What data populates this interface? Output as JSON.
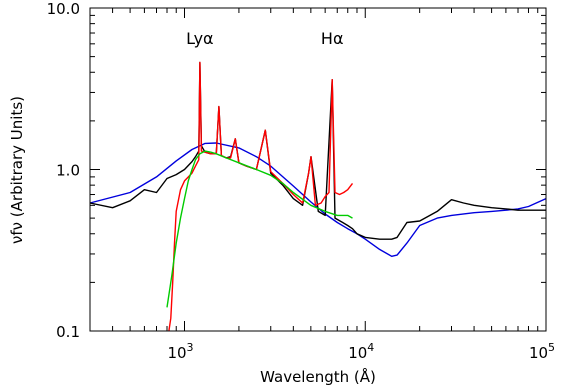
{
  "chart_data": {
    "type": "line",
    "xlabel": "Wavelength (Å)",
    "ylabel": "νfν (Arbitrary Units)",
    "xscale": "log",
    "yscale": "log",
    "xlim": [
      300,
      100000
    ],
    "ylim": [
      0.1,
      10.0
    ],
    "x_ticks": [
      {
        "value": 1000,
        "base": "10",
        "exp": "3"
      },
      {
        "value": 10000,
        "base": "10",
        "exp": "4"
      },
      {
        "value": 100000,
        "base": "10",
        "exp": "5"
      }
    ],
    "y_ticks": [
      {
        "value": 0.1,
        "label": "0.1"
      },
      {
        "value": 1.0,
        "label": "1.0"
      },
      {
        "value": 10.0,
        "label": "10.0"
      }
    ],
    "annotations": [
      {
        "text": "Lyα",
        "x": 1216,
        "y": 6.5
      },
      {
        "text": "Hα",
        "x": 6563,
        "y": 6.5
      }
    ],
    "series": [
      {
        "color": "#0000dd",
        "x": [
          300,
          500,
          700,
          900,
          1100,
          1300,
          1500,
          2000,
          2500,
          3000,
          4000,
          5000,
          6000,
          7000,
          8000,
          9000,
          10000,
          12000,
          14000,
          15000,
          17000,
          20000,
          25000,
          30000,
          40000,
          50000,
          60000,
          70000,
          80000,
          100000
        ],
        "y": [
          0.62,
          0.72,
          0.9,
          1.13,
          1.33,
          1.45,
          1.46,
          1.36,
          1.2,
          1.05,
          0.79,
          0.63,
          0.53,
          0.47,
          0.43,
          0.4,
          0.37,
          0.32,
          0.29,
          0.295,
          0.35,
          0.45,
          0.5,
          0.52,
          0.54,
          0.55,
          0.56,
          0.57,
          0.59,
          0.66
        ]
      },
      {
        "color": "#000000",
        "x": [
          300,
          400,
          500,
          600,
          700,
          800,
          900,
          1000,
          1100,
          1150,
          1200,
          1216,
          1240,
          1300,
          1400,
          1500,
          1549,
          1600,
          1700,
          1800,
          1909,
          2000,
          2200,
          2500,
          2798,
          3000,
          3500,
          4000,
          4500,
          4861,
          5007,
          5500,
          6000,
          6563,
          6800,
          7500,
          8000,
          8500,
          9000,
          10000,
          12000,
          14000,
          15000,
          17000,
          20000,
          25000,
          30000,
          35000,
          40000,
          50000,
          60000,
          70000,
          80000,
          100000
        ],
        "y": [
          0.62,
          0.58,
          0.64,
          0.75,
          0.72,
          0.88,
          0.93,
          1.0,
          1.12,
          1.2,
          1.3,
          4.6,
          1.4,
          1.28,
          1.25,
          1.26,
          2.45,
          1.22,
          1.18,
          1.2,
          1.55,
          1.1,
          1.05,
          1.0,
          1.75,
          0.95,
          0.8,
          0.66,
          0.6,
          0.95,
          1.2,
          0.55,
          0.52,
          3.6,
          0.5,
          0.47,
          0.45,
          0.43,
          0.4,
          0.38,
          0.37,
          0.37,
          0.38,
          0.47,
          0.48,
          0.55,
          0.65,
          0.62,
          0.6,
          0.58,
          0.57,
          0.56,
          0.56,
          0.56
        ]
      },
      {
        "color": "#ff0000",
        "x": [
          820,
          840,
          860,
          880,
          900,
          950,
          1000,
          1100,
          1150,
          1200,
          1216,
          1240,
          1300,
          1400,
          1500,
          1549,
          1600,
          1700,
          1800,
          1909,
          2000,
          2200,
          2500,
          2798,
          3000,
          3500,
          4000,
          4500,
          4861,
          5007,
          5300,
          5700,
          6000,
          6300,
          6563,
          6800,
          7200,
          7600,
          8000,
          8500
        ],
        "y": [
          0.08,
          0.12,
          0.2,
          0.35,
          0.55,
          0.75,
          0.85,
          0.95,
          1.05,
          1.15,
          4.6,
          1.3,
          1.28,
          1.25,
          1.25,
          2.45,
          1.22,
          1.18,
          1.18,
          1.55,
          1.1,
          1.05,
          1.0,
          1.75,
          0.97,
          0.82,
          0.7,
          0.62,
          0.95,
          1.2,
          0.6,
          0.62,
          0.68,
          0.72,
          3.6,
          0.72,
          0.7,
          0.72,
          0.75,
          0.82
        ]
      },
      {
        "color": "#00cc00",
        "x": [
          800,
          850,
          900,
          950,
          1000,
          1050,
          1100,
          1150,
          1216,
          1300,
          1400,
          1500,
          1700,
          2000,
          2500,
          3000,
          3500,
          4000,
          5000,
          6000,
          7000,
          8000,
          8500
        ],
        "y": [
          0.14,
          0.22,
          0.35,
          0.5,
          0.66,
          0.85,
          1.0,
          1.15,
          1.25,
          1.3,
          1.28,
          1.25,
          1.18,
          1.1,
          1.0,
          0.92,
          0.82,
          0.72,
          0.6,
          0.55,
          0.52,
          0.52,
          0.5
        ]
      }
    ]
  }
}
